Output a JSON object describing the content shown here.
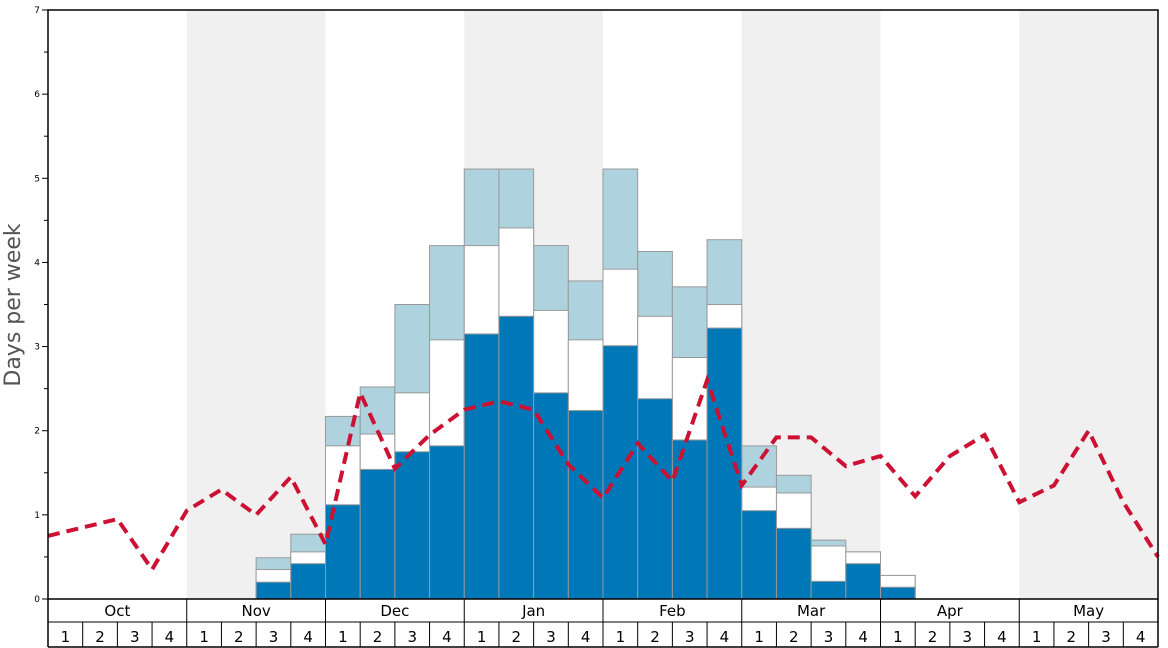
{
  "chart_data": {
    "type": "bar",
    "ylabel": "Days per week",
    "ylim": [
      0,
      7
    ],
    "yticks": [
      "0",
      "1",
      "2",
      "3",
      "4",
      "5",
      "6",
      "7"
    ],
    "months": [
      "Oct",
      "Nov",
      "Dec",
      "Jan",
      "Feb",
      "Mar",
      "Apr",
      "May"
    ],
    "week_labels": [
      "1",
      "2",
      "3",
      "4"
    ],
    "shaded_months": [
      "Nov",
      "Jan",
      "Mar",
      "May"
    ],
    "colors": {
      "base": "#0077b6",
      "middle": "#ffffff",
      "top": "#aed3df",
      "line": "#cc1133",
      "shade": "#f0f0f0"
    },
    "series": [
      {
        "values": [
          0,
          0,
          0,
          0,
          0,
          0,
          0.2,
          0.42,
          1.12,
          1.54,
          1.75,
          1.82,
          3.15,
          3.36,
          2.45,
          2.24,
          3.01,
          2.38,
          1.89,
          3.22,
          1.05,
          0.84,
          0.21,
          0.42,
          0.14,
          0,
          0,
          0,
          0,
          0,
          0,
          0
        ]
      },
      {
        "values": [
          0,
          0,
          0,
          0,
          0,
          0,
          0.35,
          0.56,
          1.82,
          1.96,
          2.45,
          3.08,
          4.2,
          4.41,
          3.43,
          3.08,
          3.92,
          3.36,
          2.87,
          3.5,
          1.33,
          1.26,
          0.63,
          0.56,
          0.28,
          0,
          0,
          0,
          0,
          0,
          0,
          0
        ]
      },
      {
        "values": [
          0,
          0,
          0,
          0,
          0,
          0,
          0.49,
          0.77,
          2.17,
          2.52,
          3.5,
          4.2,
          5.11,
          5.11,
          4.2,
          3.78,
          5.11,
          4.13,
          3.71,
          4.27,
          1.82,
          1.47,
          0.7,
          0.56,
          0.28,
          0,
          0,
          0,
          0,
          0,
          0,
          0
        ]
      }
    ],
    "line": {
      "style": "dashed",
      "values": [
        0.75,
        0.85,
        0.95,
        0.35,
        1.05,
        1.3,
        1.0,
        1.45,
        0.65,
        2.45,
        1.55,
        1.95,
        2.25,
        2.35,
        2.25,
        1.6,
        1.2,
        1.85,
        1.4,
        2.6,
        1.35,
        1.92,
        1.92,
        1.58,
        1.7,
        1.22,
        1.7,
        1.95,
        1.15,
        1.35,
        2.0,
        1.15,
        0.5
      ]
    }
  }
}
